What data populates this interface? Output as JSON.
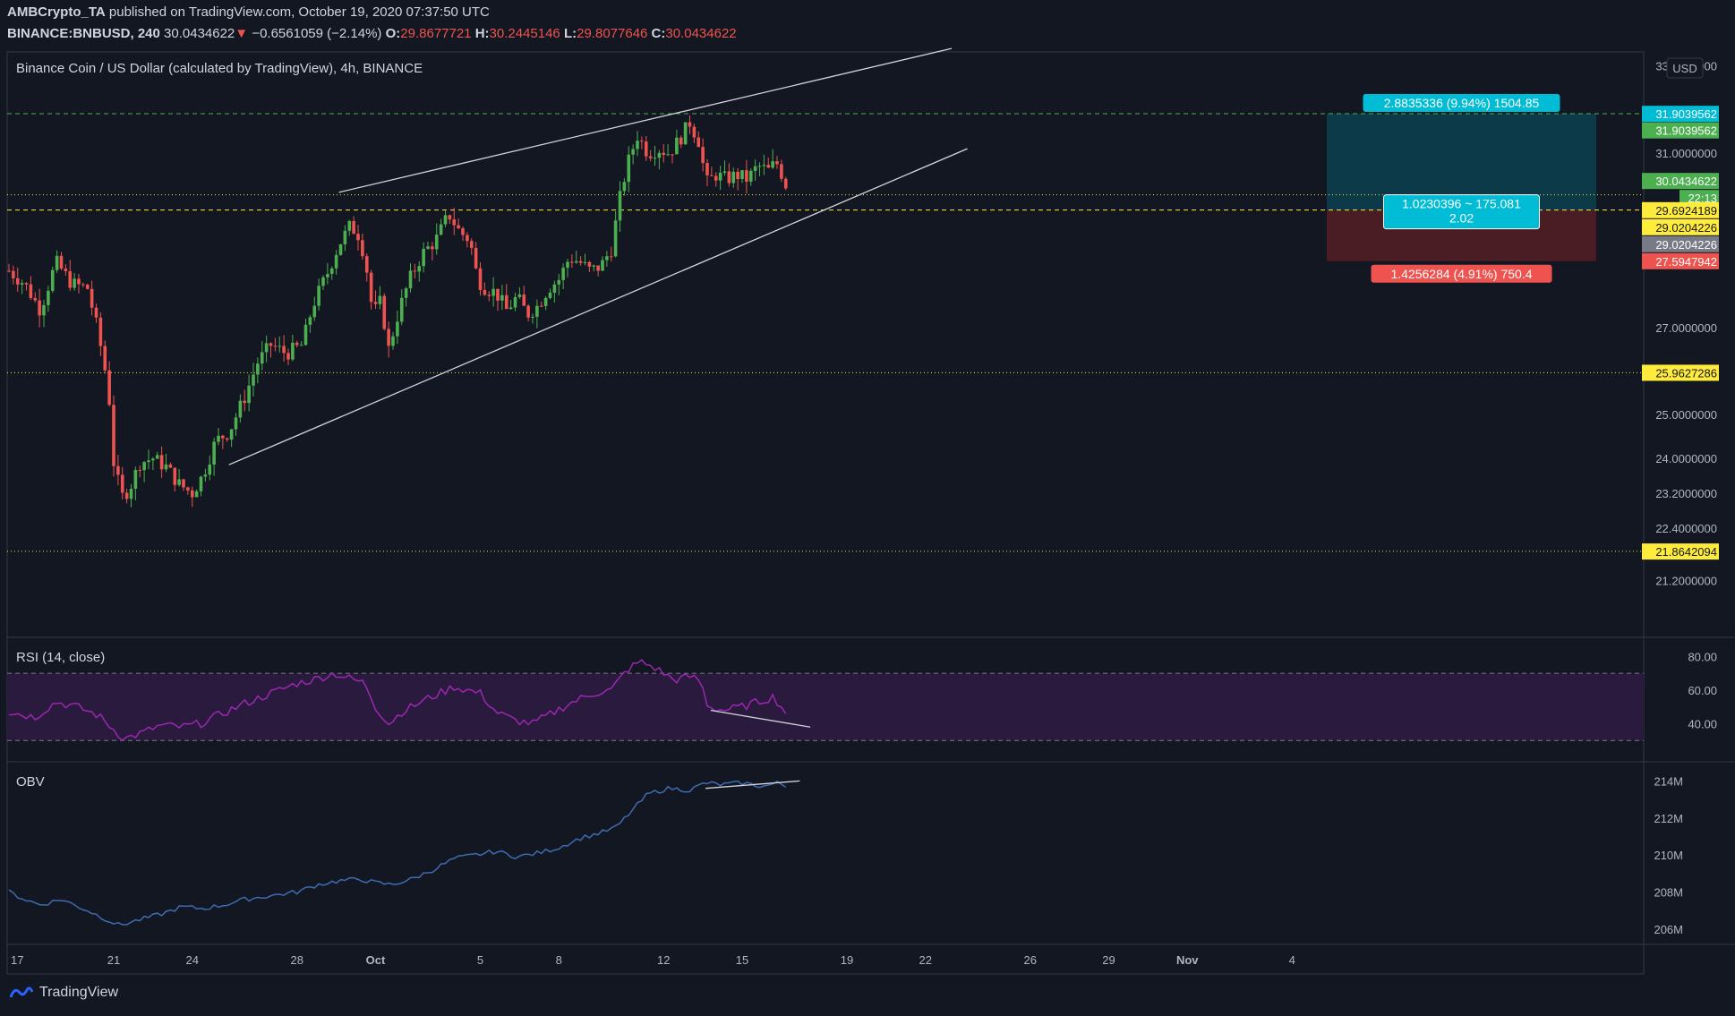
{
  "header": {
    "publisher": "AMBCrypto_TA",
    "published_text": "published on TradingView.com, October 19, 2020 07:37:50 UTC",
    "symbol": "BINANCE:BNBUSD, 240",
    "last": "30.0434622",
    "change_arrow": "▼",
    "change": "−0.6561059 (−2.14%)",
    "o_label": "O:",
    "o": "29.8677721",
    "h_label": "H:",
    "h": "30.2445146",
    "l_label": "L:",
    "l": "29.8077646",
    "c_label": "C:",
    "c": "30.0434622"
  },
  "main_pane": {
    "title": "Binance Coin / US Dollar (calculated by TradingView), 4h, BINANCE",
    "currency": "USD"
  },
  "rsi_pane": {
    "title": "RSI (14, close)"
  },
  "obv_pane": {
    "title": "OBV"
  },
  "footer": {
    "brand": "TradingView"
  },
  "colors": {
    "background": "#131722",
    "up": "#26a69a",
    "up_candle": "#4caf50",
    "down": "#ef5350",
    "rsi": "#9c27b0",
    "obv": "#3f6bb0",
    "level_yellow": "#ffeb3b",
    "level_green": "#4caf50",
    "target_fill": "#0d3a48",
    "stop_fill": "#4a1c24",
    "label_cyan": "#00bcd4"
  },
  "chart_data": [
    {
      "type": "candlestick",
      "title": "Binance Coin / US Dollar (calculated by TradingView), 4h, BINANCE",
      "y_ticks": [
        "33.0000000",
        "31.0000000",
        "27.0000000",
        "25.0000000",
        "24.0000000",
        "23.2000000",
        "22.4000000",
        "21.2000000"
      ],
      "x_ticks": [
        "17",
        "21",
        "24",
        "28",
        "Oct",
        "5",
        "8",
        "12",
        "15",
        "19",
        "22",
        "26",
        "29",
        "Nov",
        "4"
      ],
      "ylim": [
        21.1,
        33.2
      ],
      "close_path": [
        [
          17,
          28.3
        ],
        [
          17.6,
          28.0
        ],
        [
          18.2,
          27.4
        ],
        [
          18.8,
          28.5
        ],
        [
          19.4,
          28.0
        ],
        [
          20.0,
          27.9
        ],
        [
          20.4,
          26.9
        ],
        [
          20.8,
          25.6
        ],
        [
          21.0,
          23.9
        ],
        [
          21.3,
          23.1
        ],
        [
          21.6,
          23.3
        ],
        [
          22.0,
          23.9
        ],
        [
          22.5,
          24.0
        ],
        [
          23.0,
          23.8
        ],
        [
          23.5,
          23.4
        ],
        [
          24.0,
          23.2
        ],
        [
          24.4,
          23.6
        ],
        [
          24.9,
          24.4
        ],
        [
          25.4,
          24.6
        ],
        [
          26.0,
          25.4
        ],
        [
          26.5,
          26.2
        ],
        [
          27.0,
          26.6
        ],
        [
          27.6,
          26.4
        ],
        [
          28.2,
          26.6
        ],
        [
          28.6,
          27.5
        ],
        [
          29.2,
          28.3
        ],
        [
          29.6,
          28.9
        ],
        [
          30.0,
          29.3
        ],
        [
          30.3,
          29.2
        ],
        [
          30.6,
          28.6
        ],
        [
          30.9,
          27.3
        ],
        [
          31.2,
          27.6
        ],
        [
          31.5,
          26.5
        ],
        [
          31.9,
          27.4
        ],
        [
          32.3,
          28.1
        ],
        [
          32.8,
          28.7
        ],
        [
          33.3,
          29.0
        ],
        [
          33.8,
          29.6
        ],
        [
          34.2,
          29.2
        ],
        [
          34.6,
          29.0
        ],
        [
          34.9,
          28.1
        ],
        [
          35.2,
          27.9
        ],
        [
          35.6,
          27.8
        ],
        [
          36.0,
          27.4
        ],
        [
          36.4,
          27.7
        ],
        [
          36.8,
          27.3
        ],
        [
          37.2,
          27.5
        ],
        [
          37.6,
          27.9
        ],
        [
          38.0,
          28.1
        ],
        [
          38.4,
          28.6
        ],
        [
          38.8,
          28.5
        ],
        [
          39.2,
          28.3
        ],
        [
          39.6,
          28.4
        ],
        [
          40.0,
          28.8
        ],
        [
          40.4,
          30.2
        ],
        [
          40.7,
          30.9
        ],
        [
          41.0,
          31.4
        ],
        [
          41.4,
          31.0
        ],
        [
          41.8,
          31.1
        ],
        [
          42.2,
          31.0
        ],
        [
          42.6,
          31.3
        ],
        [
          43.0,
          31.7
        ],
        [
          43.4,
          31.2
        ],
        [
          43.6,
          30.3
        ],
        [
          44.0,
          30.5
        ],
        [
          44.4,
          30.4
        ],
        [
          44.8,
          30.5
        ],
        [
          45.2,
          30.4
        ],
        [
          45.6,
          30.7
        ],
        [
          46.0,
          30.6
        ],
        [
          46.3,
          30.8
        ],
        [
          46.6,
          30.4
        ],
        [
          46.8,
          30.04
        ]
      ],
      "levels": [
        {
          "value": 31.9039562,
          "label": "31.9039562",
          "color": "green",
          "style": "dashed"
        },
        {
          "value": 30.0434622,
          "label": "30.0434622",
          "color": "yellow",
          "style": "dotted"
        },
        {
          "value": 29.6924189,
          "label": "29.6924189",
          "color": "yellow",
          "style": "dashed"
        },
        {
          "value": 25.9627286,
          "label": "25.9627286",
          "color": "yellow",
          "style": "dotted"
        },
        {
          "value": 21.8642094,
          "label": "21.8642094",
          "color": "yellow",
          "style": "dotted"
        }
      ],
      "price_tags": [
        {
          "label": "31.9039562",
          "value": 31.9,
          "bg": "#00bcd4"
        },
        {
          "label": "31.9039562",
          "value": 31.52,
          "bg": "#4caf50"
        },
        {
          "label": "30.0434622",
          "value": 30.36,
          "bg": "#4caf50"
        },
        {
          "label": "22:13",
          "value": 29.97,
          "bg": "#4caf50"
        },
        {
          "label": "29.6924189",
          "value": 29.69,
          "bg": "#ffeb3b"
        },
        {
          "label": "29.0204226",
          "value": 29.3,
          "bg": "#ffeb3b"
        },
        {
          "label": "29.0204226",
          "value": 28.91,
          "bg": "#787b86"
        },
        {
          "label": "27.5947942",
          "value": 28.52,
          "bg": "#ef5350"
        },
        {
          "label": "25.9627286",
          "value": 25.96,
          "bg": "#ffeb3b"
        },
        {
          "label": "21.8642094",
          "value": 21.86,
          "bg": "#ffeb3b"
        }
      ],
      "channel": {
        "upper": [
          [
            29.6,
            30.1
          ],
          [
            53.0,
            33.4
          ]
        ],
        "lower": [
          [
            25.4,
            23.85
          ],
          [
            53.6,
            31.1
          ]
        ]
      },
      "position": {
        "x_start": 55.5,
        "x_end": 63.5,
        "target": 31.9039562,
        "entry": 29.6924189,
        "stop": 28.52,
        "target_label": "2.8835336 (9.94%) 1504.85",
        "entry_label": "1.0230396 ~ 175.081",
        "entry_label2": "2.02",
        "stop_label": "1.4256284 (4.91%) 750.4"
      }
    },
    {
      "type": "line",
      "title": "RSI (14, close)",
      "y_ticks": [
        "80.00",
        "60.00",
        "40.00"
      ],
      "ylim": [
        28,
        85
      ],
      "band": [
        70,
        30
      ],
      "path": [
        [
          17,
          47
        ],
        [
          18,
          44
        ],
        [
          18.8,
          53
        ],
        [
          19.6,
          50
        ],
        [
          20.4,
          45
        ],
        [
          20.9,
          38
        ],
        [
          21.4,
          31
        ],
        [
          22,
          34
        ],
        [
          22.8,
          39
        ],
        [
          23.6,
          38
        ],
        [
          24.3,
          40
        ],
        [
          25,
          45
        ],
        [
          26,
          52
        ],
        [
          27,
          58
        ],
        [
          28,
          64
        ],
        [
          28.6,
          66
        ],
        [
          29.4,
          70
        ],
        [
          30,
          67
        ],
        [
          30.6,
          64
        ],
        [
          31,
          50
        ],
        [
          31.5,
          40
        ],
        [
          32,
          47
        ],
        [
          33,
          55
        ],
        [
          34,
          62
        ],
        [
          35,
          58
        ],
        [
          35.6,
          47
        ],
        [
          36.3,
          42
        ],
        [
          37,
          40
        ],
        [
          37.6,
          45
        ],
        [
          38.4,
          52
        ],
        [
          39.3,
          58
        ],
        [
          40,
          60
        ],
        [
          40.6,
          72
        ],
        [
          41.1,
          77
        ],
        [
          41.7,
          73
        ],
        [
          42.4,
          66
        ],
        [
          43,
          68
        ],
        [
          43.4,
          66
        ],
        [
          43.7,
          50
        ],
        [
          44.3,
          48
        ],
        [
          45,
          50
        ],
        [
          45.6,
          53
        ],
        [
          46.2,
          56
        ],
        [
          46.6,
          48
        ],
        [
          46.8,
          45
        ]
      ],
      "divergence": [
        [
          43.8,
          48
        ],
        [
          47.6,
          38
        ]
      ]
    },
    {
      "type": "line",
      "title": "OBV",
      "y_ticks": [
        "214M",
        "212M",
        "210M",
        "208M",
        "206M"
      ],
      "ylim": [
        205.7,
        214.6
      ],
      "path": [
        [
          17,
          208
        ],
        [
          17.6,
          207.6
        ],
        [
          18.2,
          207.3
        ],
        [
          19,
          207.6
        ],
        [
          20,
          207.0
        ],
        [
          20.6,
          206.6
        ],
        [
          21.2,
          206.2
        ],
        [
          22,
          206.5
        ],
        [
          22.8,
          206.8
        ],
        [
          23.6,
          207.2
        ],
        [
          24.4,
          207.1
        ],
        [
          25.2,
          207.3
        ],
        [
          26,
          207.6
        ],
        [
          27,
          207.8
        ],
        [
          28,
          208.0
        ],
        [
          28.8,
          208.4
        ],
        [
          29.6,
          208.6
        ],
        [
          30.4,
          208.7
        ],
        [
          31,
          208.5
        ],
        [
          31.6,
          208.4
        ],
        [
          32.4,
          208.7
        ],
        [
          33.2,
          209.2
        ],
        [
          34,
          209.8
        ],
        [
          34.8,
          210.0
        ],
        [
          35.6,
          210.2
        ],
        [
          36.4,
          209.9
        ],
        [
          37.2,
          210.1
        ],
        [
          38,
          210.4
        ],
        [
          38.8,
          210.9
        ],
        [
          39.6,
          211.2
        ],
        [
          40.2,
          211.5
        ],
        [
          40.8,
          212.4
        ],
        [
          41.4,
          213.3
        ],
        [
          42.2,
          213.6
        ],
        [
          43,
          213.5
        ],
        [
          43.6,
          213.9
        ],
        [
          44.2,
          213.8
        ],
        [
          45,
          213.9
        ],
        [
          45.8,
          213.7
        ],
        [
          46.4,
          213.9
        ],
        [
          46.8,
          213.6
        ]
      ],
      "divergence": [
        [
          43.6,
          213.6
        ],
        [
          47.2,
          214.0
        ]
      ]
    }
  ]
}
